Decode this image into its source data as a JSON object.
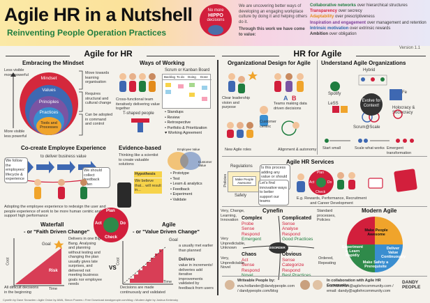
{
  "header": {
    "title": "Agile HR in a Nutshell",
    "subtitle": "Reinventing People Operation Practices",
    "hippo_line1": "No more",
    "hippo_line2": "HIPPO",
    "hippo_line3": "decisions",
    "manifesto_intro": "We are uncovering better ways of developing an engaging workplace culture by doing it and helping others do it.",
    "manifesto_value": "Through this work we have come to value:",
    "values": [
      {
        "key": "Collaborative networks",
        "rest": "over hierarchical structures"
      },
      {
        "key": "Transparency",
        "rest": "over secrecy"
      },
      {
        "key": "Adaptability",
        "rest": "over prescriptiveness"
      },
      {
        "key": "Inspiration and engagement",
        "rest": "over management and retention"
      },
      {
        "key": "Intrinsic motivation",
        "rest": "over extrinsic rewards"
      },
      {
        "key": "Ambition",
        "rest": "over obligation"
      }
    ],
    "version": "Version 1.1"
  },
  "left": {
    "heading": "Agile for HR",
    "mindset": {
      "title": "Embracing the Mindset",
      "less_visible": "Less visible more powerful",
      "more_visible": "More visible less powerful",
      "layers": [
        "Mindset",
        "Values",
        "Principles",
        "Practices",
        "Tools and Processes"
      ],
      "notes": [
        "Move towards learning organisation",
        "Requires structural and cultural change",
        "Can be adopted in command and control"
      ]
    },
    "ways": {
      "title": "Ways of Working",
      "board": "Scrum or Kanban Board",
      "cols": [
        "Backlog",
        "To do",
        "Doing",
        "Done"
      ],
      "team_note": "Cross-functional team iteratively delivering value together",
      "t_shaped": "T-shaped people",
      "events": [
        "• Standups",
        "• Review",
        "• Retrospective",
        "• Portfolio & Prioritization",
        "♥ Working Agreement"
      ]
    },
    "cocreate": {
      "title": "Co-create Employee Experience",
      "deliver": "to deliver business value",
      "bubble1": "We follow the employees' lifecycle & experience",
      "bubble2": "We should collect feedback often",
      "note": "Adopting the employee experience to redesign the user and people experience of work to be more human centric and support high performance"
    },
    "evidence": {
      "title": "Evidence-based",
      "thinking": "Thinking like a scientist to create valuable solutions",
      "employee_value": "Employee Value",
      "customer_value": "Customer Value",
      "plan": "Plan",
      "act": "Act",
      "check": "Check",
      "do": "Do",
      "card1": "Hypothesis",
      "card2": "We believe that... will result in...",
      "steps": [
        "• Prototype",
        "• Test",
        "• Learn & analytics",
        "• Feedback",
        "• Experiment",
        "• Validate"
      ]
    },
    "waterfall": {
      "title": "Waterfall",
      "subtitle": "- or \"Faith Driven Change\"",
      "goal": "Goal",
      "risk": "Risk",
      "cost": "Cost",
      "time": "Time",
      "note": "Delivers in one Big Bang. Analysing and planning without testing and changing the plan usually gives late surprises, and delivered not meeting business goals nor employee needs",
      "difficult": "All difficult decisions in the beginning"
    },
    "agile": {
      "title": "Agile",
      "subtitle": "- or \"Value Driven Change\"",
      "vs": "VS",
      "goal": "Goal",
      "goal_note": "a usually met earlier than planned",
      "delivers": "Delivers",
      "note": "value in increments! deliveries add iterative improvements validated by feedback from users",
      "decisions": "Decisions are made continuously and validated",
      "time": "Time",
      "cost": "Cost"
    }
  },
  "right": {
    "heading": "HR for Agile",
    "org": {
      "title": "Organizational Design for Agile",
      "labels": [
        "Clear leadership vision and purpose",
        "Teams making data driven decisions",
        "Customer centric",
        "New Agile roles",
        "Alignment & autonomy"
      ]
    },
    "understand": {
      "title": "Understand Agile Organizations",
      "items": [
        "Hybrid",
        "Spotify",
        "SAFe",
        "LeSS",
        "Holocracy & Sociocracy",
        "Scrum@Scale"
      ],
      "center": "Evolve for Context!",
      "bottom": [
        "Start small",
        "Scale what works",
        "Emergent transformation"
      ]
    },
    "services": {
      "title": "Agile HR Services",
      "regulations": "Regulations",
      "policies": "Policies",
      "safety": "Safety",
      "sign": "Make People Awesome",
      "bubble1": "Is this process adding any value or should we stop doing this?",
      "bubble2": "Let's find innovative ways to better support our teams",
      "plan": "Plan",
      "do": "Do",
      "check": "Check",
      "act": "Act",
      "caption": "E.g. Rewards, Performance, Recruitment and Career Development"
    },
    "cynefin": {
      "title": "Cynefin",
      "left_note": "Very, Change, Learning, Innovation",
      "right_note": "Standard processes, Policies",
      "very_note": "Very, Unpredictable, Novel",
      "complex_title": "Complex",
      "complex": [
        "Probe",
        "Sense",
        "Respond",
        "Emergent"
      ],
      "complicated_title": "Complicated",
      "complicated": [
        "Sense",
        "Analyse",
        "Respond",
        "Good Practices"
      ],
      "chaos_title": "Chaos",
      "chaos": [
        "Act",
        "Sense",
        "Respond",
        "Novel"
      ],
      "obvious_title": "Obvious",
      "obvious": [
        "Sense",
        "Categorize",
        "Respond",
        "Best Practices"
      ],
      "center": "DISORDER",
      "very_left": "Very Unpredictable, Unknown",
      "bottom_right": "Ordered, Repeating"
    },
    "modern": {
      "title": "Modern Agile",
      "items": [
        "Make People Awesome",
        "Deliver Value Continuously",
        "Make Safety a Prerequisite",
        "Experiment & Learn Rapidly"
      ]
    },
    "contact": {
      "intro": "Writeable People by:",
      "emails": "eva.hollander@dandypeople.com / dandypeople.com/blog",
      "connect": "In collaboration with Agile HR Community:",
      "link": "lina.hallstrom@agilehrcommunity.com / email: dandy@agilehrcommunity.com",
      "logo1": "DANDY",
      "logo2": "PEOPLE"
    }
  },
  "footer": "Cynefin by Dave Snowden  •  Agile Onion by AWA, Simon Powers  •  Free Download dandypeople.com/blog  •  Modern Agile by Joshua Kerievsky"
}
